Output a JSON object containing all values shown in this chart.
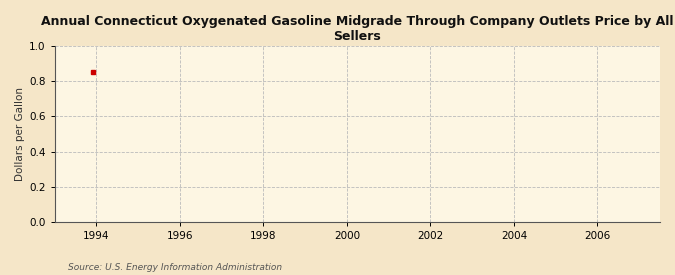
{
  "title": "Annual Connecticut Oxygenated Gasoline Midgrade Through Company Outlets Price by All Sellers",
  "ylabel": "Dollars per Gallon",
  "source": "Source: U.S. Energy Information Administration",
  "background_color": "#f5e6c8",
  "plot_bg_color": "#fdf6e3",
  "data_x": [
    1993.92
  ],
  "data_y": [
    0.854
  ],
  "data_color": "#cc0000",
  "xlim": [
    1993.0,
    2007.5
  ],
  "ylim": [
    0.0,
    1.0
  ],
  "xticks": [
    1994,
    1996,
    1998,
    2000,
    2002,
    2004,
    2006
  ],
  "yticks": [
    0.0,
    0.2,
    0.4,
    0.6,
    0.8,
    1.0
  ],
  "grid_color": "#bbbbbb",
  "grid_style": "--",
  "title_fontsize": 9,
  "label_fontsize": 7.5,
  "tick_fontsize": 7.5,
  "source_fontsize": 6.5
}
